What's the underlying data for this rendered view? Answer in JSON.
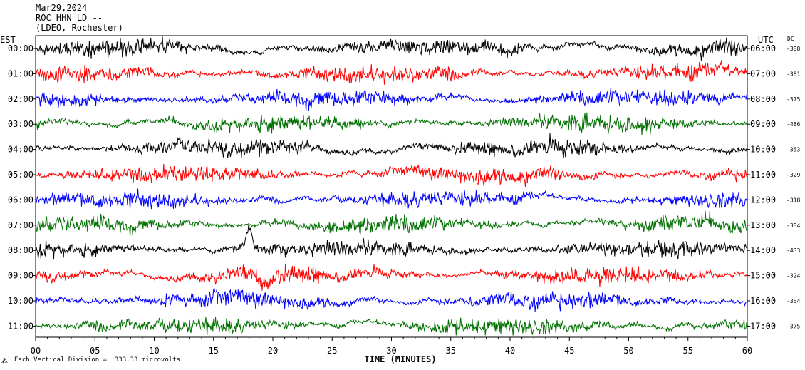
{
  "header": {
    "date": "Mar29,2024",
    "station": "ROC HHN LD --",
    "location": "(LDEO, Rochester)"
  },
  "footer": {
    "scale_note": "Each Vertical Division =  333.33 microvolts"
  },
  "colors": {
    "trace_cycle": [
      "#000000",
      "#ff0000",
      "#0000ff",
      "#007000"
    ]
  },
  "chart_data": {
    "type": "seismogram-helicorder",
    "xlabel": "TIME (MINUTES)",
    "xlim": [
      0,
      60
    ],
    "x_ticks": [
      "00",
      "05",
      "10",
      "15",
      "20",
      "25",
      "30",
      "35",
      "40",
      "45",
      "50",
      "55",
      "60"
    ],
    "left_axis_label": "EST",
    "right_axis_label": "UTC",
    "dc_label": "DC",
    "rows": [
      {
        "est": "00:00",
        "utc": "06:00",
        "dc": "-388",
        "color": "#000000"
      },
      {
        "est": "01:00",
        "utc": "07:00",
        "dc": "-381",
        "color": "#ff0000"
      },
      {
        "est": "02:00",
        "utc": "08:00",
        "dc": "-375",
        "color": "#0000ff"
      },
      {
        "est": "03:00",
        "utc": "09:00",
        "dc": "-486",
        "color": "#007000"
      },
      {
        "est": "04:00",
        "utc": "10:00",
        "dc": "-353",
        "color": "#000000"
      },
      {
        "est": "05:00",
        "utc": "11:00",
        "dc": "-329",
        "color": "#ff0000"
      },
      {
        "est": "06:00",
        "utc": "12:00",
        "dc": "-318",
        "color": "#0000ff"
      },
      {
        "est": "07:00",
        "utc": "13:00",
        "dc": "-384",
        "color": "#007000"
      },
      {
        "est": "08:00",
        "utc": "14:00",
        "dc": "-433",
        "color": "#000000"
      },
      {
        "est": "09:00",
        "utc": "15:00",
        "dc": "-324",
        "color": "#ff0000"
      },
      {
        "est": "10:00",
        "utc": "16:00",
        "dc": "-364",
        "color": "#0000ff"
      },
      {
        "est": "11:00",
        "utc": "17:00",
        "dc": "-375",
        "color": "#007000"
      }
    ],
    "events": [
      {
        "row": 4,
        "minute": 12,
        "kind": "small bump"
      },
      {
        "row": 8,
        "minute": 18,
        "kind": "large red pulse"
      }
    ],
    "grid": false
  }
}
